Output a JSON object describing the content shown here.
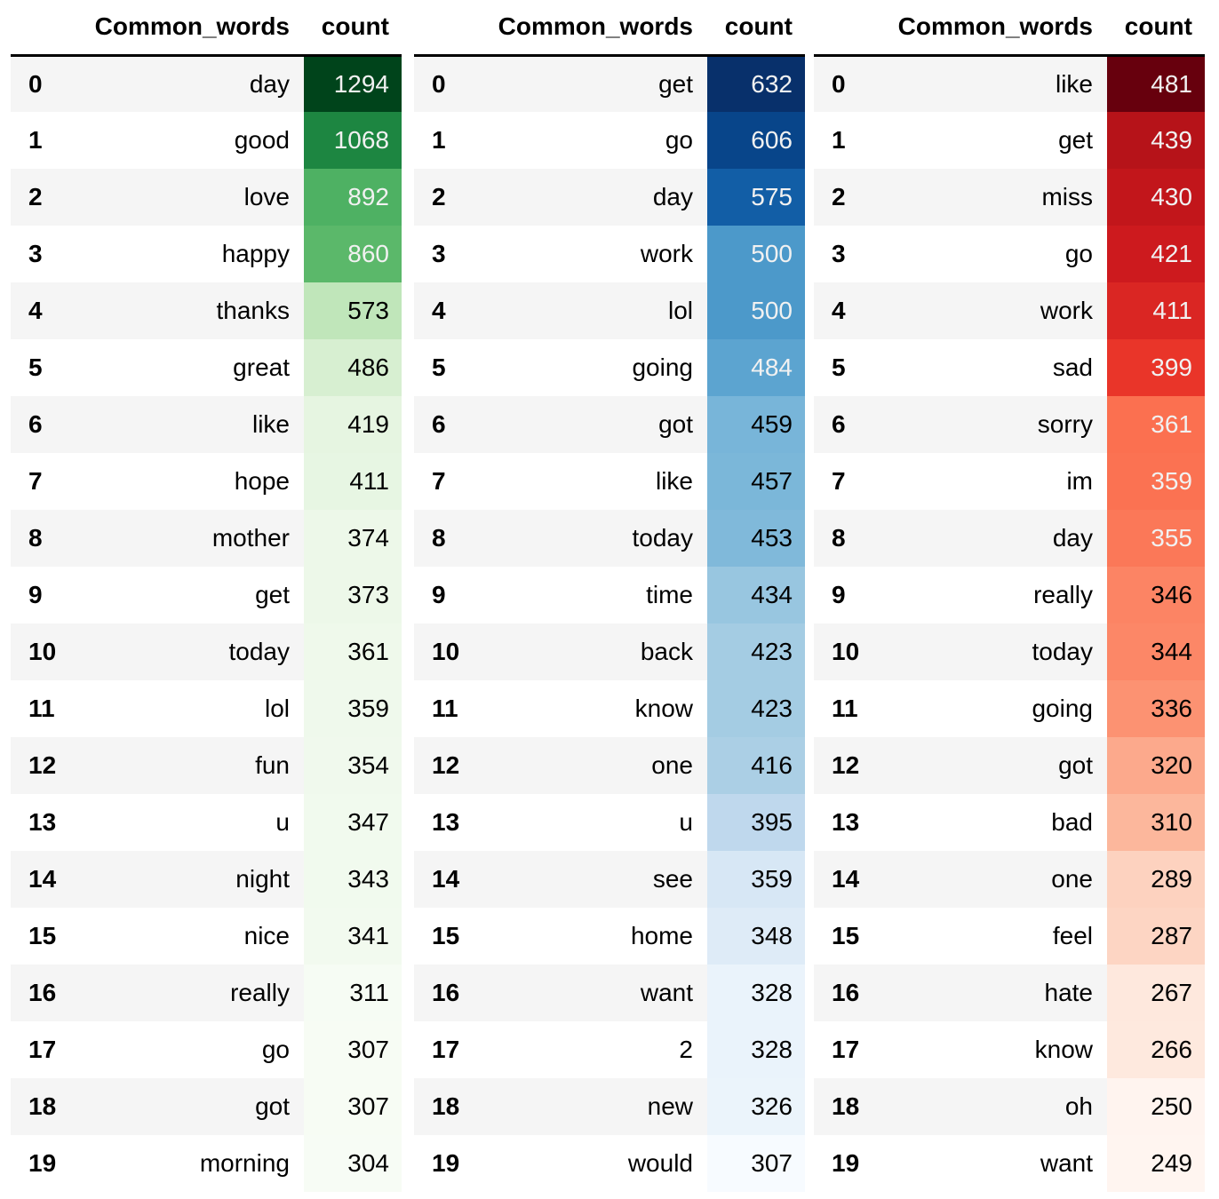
{
  "tables": [
    {
      "header": {
        "word": "Common_words",
        "count": "count"
      },
      "colormap": "Greens",
      "rows": [
        {
          "idx": "0",
          "word": "day",
          "count": "1294"
        },
        {
          "idx": "1",
          "word": "good",
          "count": "1068"
        },
        {
          "idx": "2",
          "word": "love",
          "count": "892"
        },
        {
          "idx": "3",
          "word": "happy",
          "count": "860"
        },
        {
          "idx": "4",
          "word": "thanks",
          "count": "573"
        },
        {
          "idx": "5",
          "word": "great",
          "count": "486"
        },
        {
          "idx": "6",
          "word": "like",
          "count": "419"
        },
        {
          "idx": "7",
          "word": "hope",
          "count": "411"
        },
        {
          "idx": "8",
          "word": "mother",
          "count": "374"
        },
        {
          "idx": "9",
          "word": "get",
          "count": "373"
        },
        {
          "idx": "10",
          "word": "today",
          "count": "361"
        },
        {
          "idx": "11",
          "word": "lol",
          "count": "359"
        },
        {
          "idx": "12",
          "word": "fun",
          "count": "354"
        },
        {
          "idx": "13",
          "word": "u",
          "count": "347"
        },
        {
          "idx": "14",
          "word": "night",
          "count": "343"
        },
        {
          "idx": "15",
          "word": "nice",
          "count": "341"
        },
        {
          "idx": "16",
          "word": "really",
          "count": "311"
        },
        {
          "idx": "17",
          "word": "go",
          "count": "307"
        },
        {
          "idx": "18",
          "word": "got",
          "count": "307"
        },
        {
          "idx": "19",
          "word": "morning",
          "count": "304"
        }
      ]
    },
    {
      "header": {
        "word": "Common_words",
        "count": "count"
      },
      "colormap": "Blues",
      "rows": [
        {
          "idx": "0",
          "word": "get",
          "count": "632"
        },
        {
          "idx": "1",
          "word": "go",
          "count": "606"
        },
        {
          "idx": "2",
          "word": "day",
          "count": "575"
        },
        {
          "idx": "3",
          "word": "work",
          "count": "500"
        },
        {
          "idx": "4",
          "word": "lol",
          "count": "500"
        },
        {
          "idx": "5",
          "word": "going",
          "count": "484"
        },
        {
          "idx": "6",
          "word": "got",
          "count": "459"
        },
        {
          "idx": "7",
          "word": "like",
          "count": "457"
        },
        {
          "idx": "8",
          "word": "today",
          "count": "453"
        },
        {
          "idx": "9",
          "word": "time",
          "count": "434"
        },
        {
          "idx": "10",
          "word": "back",
          "count": "423"
        },
        {
          "idx": "11",
          "word": "know",
          "count": "423"
        },
        {
          "idx": "12",
          "word": "one",
          "count": "416"
        },
        {
          "idx": "13",
          "word": "u",
          "count": "395"
        },
        {
          "idx": "14",
          "word": "see",
          "count": "359"
        },
        {
          "idx": "15",
          "word": "home",
          "count": "348"
        },
        {
          "idx": "16",
          "word": "want",
          "count": "328"
        },
        {
          "idx": "17",
          "word": "2",
          "count": "328"
        },
        {
          "idx": "18",
          "word": "new",
          "count": "326"
        },
        {
          "idx": "19",
          "word": "would",
          "count": "307"
        }
      ]
    },
    {
      "header": {
        "word": "Common_words",
        "count": "count"
      },
      "colormap": "Reds",
      "rows": [
        {
          "idx": "0",
          "word": "like",
          "count": "481"
        },
        {
          "idx": "1",
          "word": "get",
          "count": "439"
        },
        {
          "idx": "2",
          "word": "miss",
          "count": "430"
        },
        {
          "idx": "3",
          "word": "go",
          "count": "421"
        },
        {
          "idx": "4",
          "word": "work",
          "count": "411"
        },
        {
          "idx": "5",
          "word": "sad",
          "count": "399"
        },
        {
          "idx": "6",
          "word": "sorry",
          "count": "361"
        },
        {
          "idx": "7",
          "word": "im",
          "count": "359"
        },
        {
          "idx": "8",
          "word": "day",
          "count": "355"
        },
        {
          "idx": "9",
          "word": "really",
          "count": "346"
        },
        {
          "idx": "10",
          "word": "today",
          "count": "344"
        },
        {
          "idx": "11",
          "word": "going",
          "count": "336"
        },
        {
          "idx": "12",
          "word": "got",
          "count": "320"
        },
        {
          "idx": "13",
          "word": "bad",
          "count": "310"
        },
        {
          "idx": "14",
          "word": "one",
          "count": "289"
        },
        {
          "idx": "15",
          "word": "feel",
          "count": "287"
        },
        {
          "idx": "16",
          "word": "hate",
          "count": "267"
        },
        {
          "idx": "17",
          "word": "know",
          "count": "266"
        },
        {
          "idx": "18",
          "word": "oh",
          "count": "250"
        },
        {
          "idx": "19",
          "word": "want",
          "count": "249"
        }
      ]
    }
  ]
}
